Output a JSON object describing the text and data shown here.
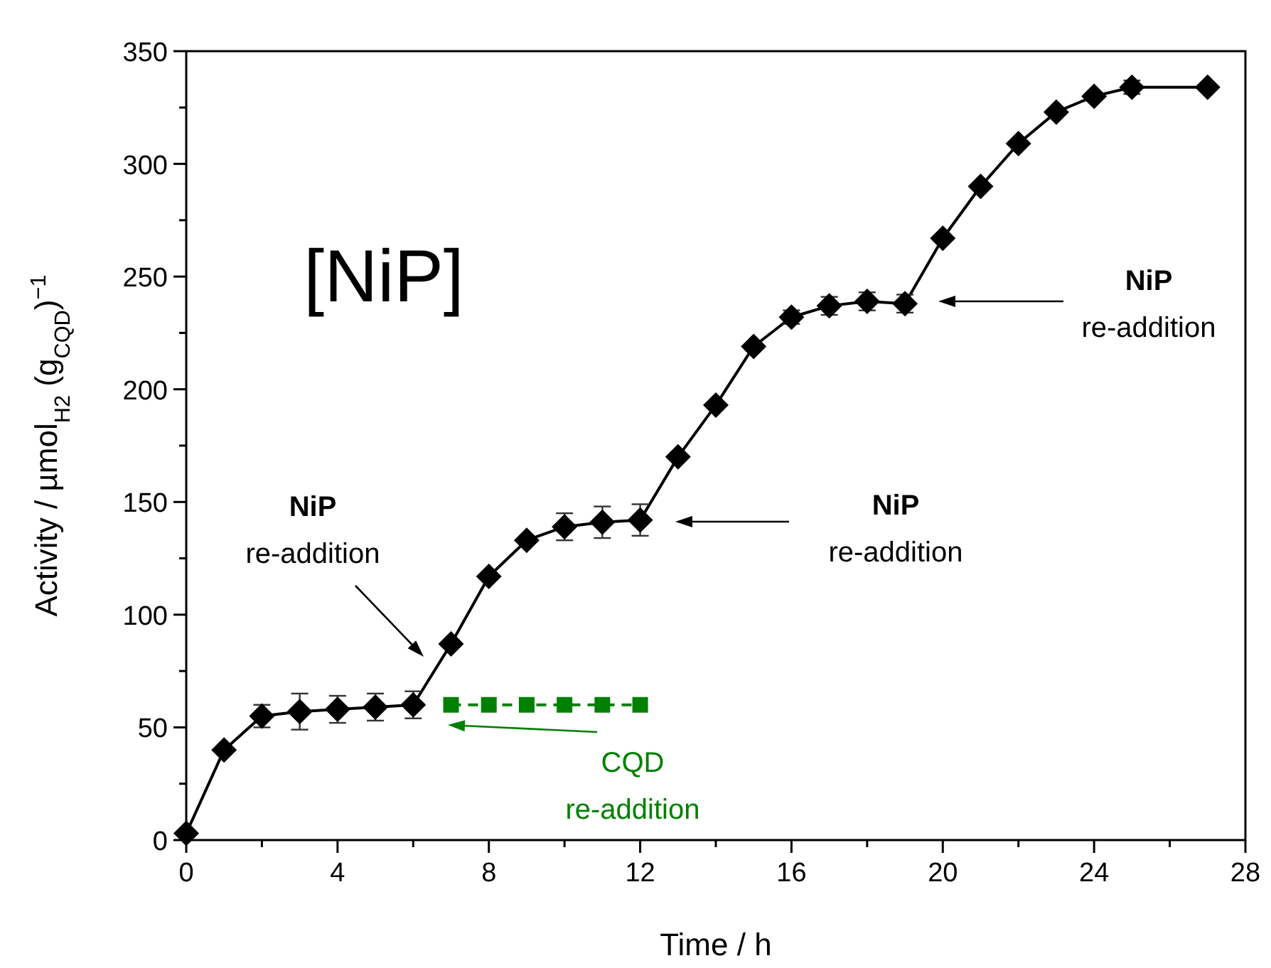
{
  "chart_data": {
    "type": "line",
    "xlabel": "Time / h",
    "ylabel": "Activity / µmol$_{H2}$ (g$_{CQD}$)$^{−1}$",
    "xlim": [
      0,
      28
    ],
    "xticks": [
      0,
      {
        "value": 2,
        "label": null
      },
      4,
      {
        "value": 6,
        "label": null
      },
      8,
      {
        "value": 10,
        "label": null
      },
      12,
      {
        "value": 14,
        "label": null
      },
      16,
      {
        "value": 18,
        "label": null
      },
      20,
      {
        "value": 22,
        "label": null
      },
      24,
      {
        "value": 26,
        "label": null
      },
      28
    ],
    "ylim": [
      0,
      350
    ],
    "yticks": [
      0,
      {
        "value": 25,
        "label": null
      },
      50,
      {
        "value": 75,
        "label": null
      },
      100,
      {
        "value": 125,
        "label": null
      },
      150,
      {
        "value": 175,
        "label": null
      },
      200,
      {
        "value": 225,
        "label": null
      },
      250,
      {
        "value": 275,
        "label": null
      },
      300,
      {
        "value": 325,
        "label": null
      },
      350
    ],
    "grid": false,
    "series": [
      {
        "color": "#008000",
        "marker": "square",
        "line_style": "dashed",
        "x": [
          7,
          8,
          9,
          10,
          11,
          12
        ],
        "values": [
          60,
          60,
          60,
          60,
          60,
          60
        ]
      },
      {
        "color": "#000000",
        "marker": "diamond",
        "line_style": "solid",
        "x": [
          0,
          1,
          2,
          3,
          4,
          5,
          6,
          7,
          8,
          9,
          10,
          11,
          12,
          13,
          14,
          15,
          16,
          17,
          18,
          19,
          20,
          21,
          22,
          23,
          24,
          25,
          27
        ],
        "values": [
          3,
          40,
          55,
          57,
          58,
          59,
          60,
          87,
          117,
          133,
          139,
          141,
          142,
          170,
          193,
          219,
          232,
          237,
          239,
          238,
          267,
          290,
          309,
          323,
          330,
          334,
          334
        ],
        "errors": [
          null,
          null,
          5,
          8,
          6,
          6,
          6,
          null,
          null,
          null,
          6,
          7,
          7,
          null,
          null,
          null,
          3,
          4,
          4,
          4,
          null,
          null,
          null,
          null,
          null,
          3,
          null
        ]
      }
    ],
    "annotations": [
      "[NiP]",
      "NiP\nre-addition",
      "NiP\nre-addition",
      "NiP\nre-addition",
      "CQD\nre-addition"
    ]
  }
}
